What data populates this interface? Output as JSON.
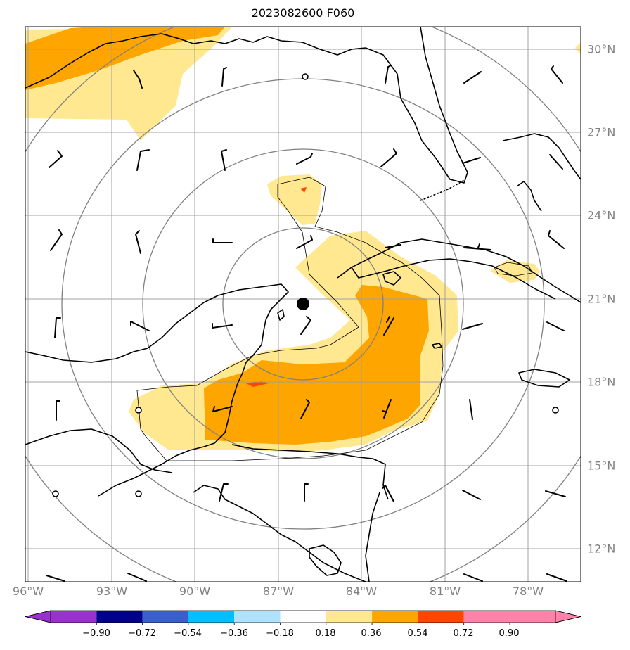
{
  "title": "2023082600 F060",
  "longitude_labels": [
    "96°W",
    "93°W",
    "90°W",
    "87°W",
    "84°W",
    "81°W",
    "78°W"
  ],
  "latitude_labels": [
    "30°N",
    "27°N",
    "24°N",
    "21°N",
    "18°N",
    "15°N",
    "12°N"
  ],
  "colorbar": {
    "ticks": [
      "−0.90",
      "−0.72",
      "−0.54",
      "−0.36",
      "−0.18",
      "0.18",
      "0.36",
      "0.54",
      "0.72",
      "0.90"
    ],
    "colors": [
      "#9932cc",
      "#00008b",
      "#3a5fcd",
      "#00bfff",
      "#b0e2ff",
      "#ffffff",
      "#ffe88f",
      "#ffa500",
      "#ff4500",
      "#b22222",
      "#ff82ab"
    ]
  },
  "colors": {
    "light_yellow": "#ffe88f",
    "orange": "#ffa500",
    "red": "#ff4500",
    "grid": "#a0a0a0",
    "range_rings": "#808080"
  },
  "storm_center": {
    "lat": 20.8,
    "lon": -86.1,
    "marker": "filled-black-circle"
  },
  "map_features": [
    "coastlines",
    "lat-lon-grid",
    "range-rings",
    "wind-barbs",
    "shaded-anomaly-field"
  ]
}
